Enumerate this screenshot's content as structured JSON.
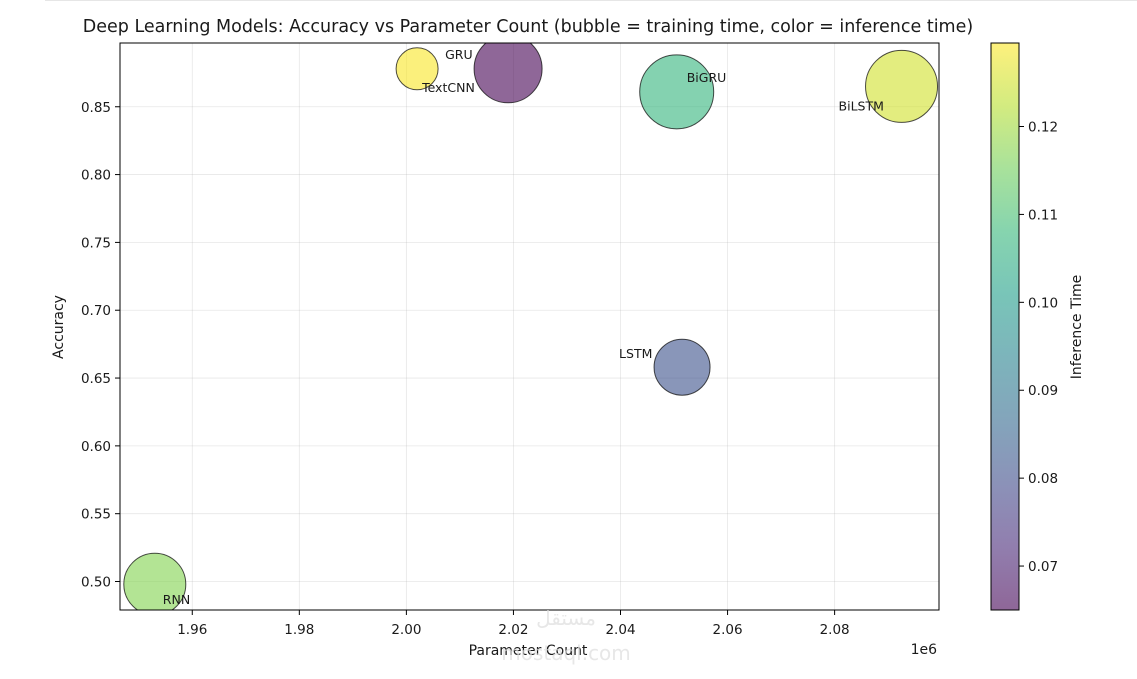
{
  "chart_data": {
    "type": "scatter",
    "title": "Deep Learning Models: Accuracy vs Parameter Count (bubble = training time, color = inference time)",
    "xlabel": "Parameter Count",
    "ylabel": "Accuracy",
    "x_offset_label": "1e6",
    "xlim": [
      1.9465,
      2.0995
    ],
    "ylim": [
      0.479,
      0.897
    ],
    "x_ticks": [
      1.96,
      1.98,
      2.0,
      2.02,
      2.04,
      2.06,
      2.08
    ],
    "x_tick_labels": [
      "1.96",
      "1.98",
      "2.00",
      "2.02",
      "2.04",
      "2.06",
      "2.08"
    ],
    "y_ticks": [
      0.5,
      0.55,
      0.6,
      0.65,
      0.7,
      0.75,
      0.8,
      0.85
    ],
    "y_tick_labels": [
      "0.50",
      "0.55",
      "0.60",
      "0.65",
      "0.70",
      "0.75",
      "0.80",
      "0.85"
    ],
    "grid": true,
    "colorbar": {
      "label": "Inference Time",
      "colormap": "viridis",
      "range": [
        0.065,
        0.1295
      ],
      "ticks": [
        0.07,
        0.08,
        0.09,
        0.1,
        0.11,
        0.12
      ],
      "tick_labels": [
        "0.07",
        "0.08",
        "0.09",
        "0.10",
        "0.11",
        "0.12"
      ],
      "colors": [
        "#440154",
        "#482878",
        "#3e4989",
        "#31688e",
        "#26828e",
        "#1f9e89",
        "#35b779",
        "#6ece58",
        "#b5de2b",
        "#fde725"
      ]
    },
    "points": [
      {
        "name": "RNN",
        "x": 1.953,
        "y": 0.498,
        "inference_time": 0.117,
        "bubble_size": 31
      },
      {
        "name": "GRU",
        "x": 2.002,
        "y": 0.878,
        "inference_time": 0.129,
        "bubble_size": 21
      },
      {
        "name": "TextCNN",
        "x": 2.019,
        "y": 0.878,
        "inference_time": 0.065,
        "bubble_size": 34
      },
      {
        "name": "BiGRU",
        "x": 2.0505,
        "y": 0.861,
        "inference_time": 0.107,
        "bubble_size": 37
      },
      {
        "name": "LSTM",
        "x": 2.0515,
        "y": 0.658,
        "inference_time": 0.081,
        "bubble_size": 28
      },
      {
        "name": "BiLSTM",
        "x": 2.0925,
        "y": 0.865,
        "inference_time": 0.125,
        "bubble_size": 36
      }
    ]
  },
  "watermark": {
    "script": "مستقل",
    "latin": "mostaql.com"
  }
}
